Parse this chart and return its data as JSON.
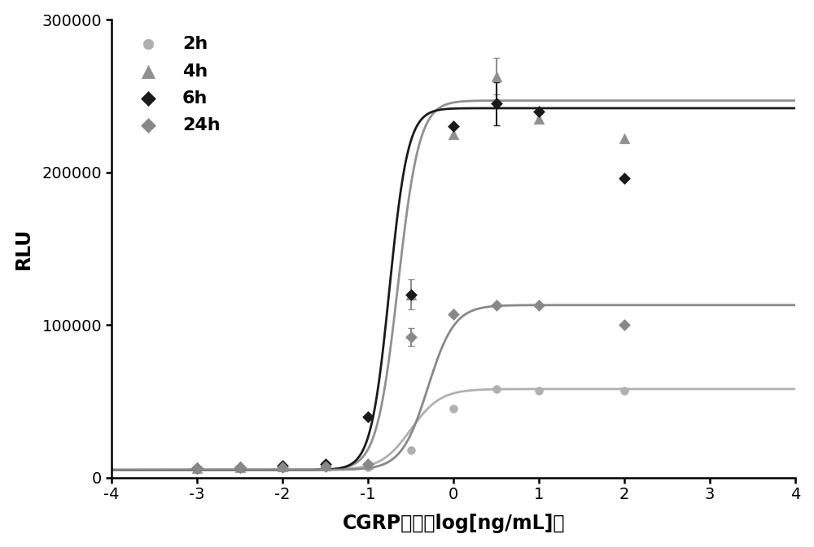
{
  "series": [
    {
      "label": "2h",
      "color": "#b0b0b0",
      "marker": "o",
      "marker_size": 7,
      "line_style": "-",
      "bottom": 5000,
      "top": 58000,
      "ec50_log": -0.5,
      "hill": 2.5,
      "data_x": [
        -3,
        -2.5,
        -2,
        -1.5,
        -1,
        -0.5,
        0,
        0.5,
        1,
        2
      ],
      "data_y": [
        5000,
        6000,
        6000,
        6500,
        7000,
        18000,
        45000,
        58000,
        57000,
        57000
      ],
      "yerr": [
        0,
        0,
        0,
        0,
        0,
        0,
        0,
        0,
        0,
        0
      ]
    },
    {
      "label": "4h",
      "color": "#909090",
      "marker": "^",
      "marker_size": 9,
      "line_style": "-",
      "bottom": 5000,
      "top": 247000,
      "ec50_log": -0.65,
      "hill": 3.5,
      "data_x": [
        -3,
        -2.5,
        -2,
        -1.5,
        -1,
        -0.5,
        0,
        0.5,
        1,
        2
      ],
      "data_y": [
        6000,
        7000,
        7500,
        8000,
        9000,
        120000,
        225000,
        263000,
        235000,
        222000
      ],
      "yerr": [
        0,
        0,
        0,
        0,
        0,
        10000,
        0,
        12000,
        0,
        0
      ]
    },
    {
      "label": "6h",
      "color": "#1a1a1a",
      "marker": "D",
      "marker_size": 7,
      "line_style": "-",
      "bottom": 5000,
      "top": 242000,
      "ec50_log": -0.75,
      "hill": 4.0,
      "data_x": [
        -3,
        -2.5,
        -2,
        -1.5,
        -1,
        -0.5,
        0,
        0.5,
        1,
        2
      ],
      "data_y": [
        6000,
        7000,
        8000,
        9000,
        40000,
        120000,
        230000,
        245000,
        240000,
        196000
      ],
      "yerr": [
        0,
        0,
        0,
        0,
        0,
        0,
        0,
        14000,
        0,
        0
      ]
    },
    {
      "label": "24h",
      "color": "#888888",
      "marker": "D",
      "marker_size": 7,
      "line_style": "-",
      "bottom": 5000,
      "top": 113000,
      "ec50_log": -0.3,
      "hill": 2.8,
      "data_x": [
        -3,
        -2.5,
        -2,
        -1.5,
        -1,
        -0.5,
        0,
        0.5,
        1,
        2
      ],
      "data_y": [
        6000,
        7000,
        7000,
        7500,
        9000,
        92000,
        107000,
        113000,
        113000,
        100000
      ],
      "yerr": [
        0,
        0,
        0,
        0,
        0,
        6000,
        0,
        0,
        0,
        0
      ]
    }
  ],
  "xlabel": "CGRP浓度（log[ng/mL]）",
  "ylabel": "RLU",
  "xlim": [
    -4,
    4
  ],
  "ylim": [
    0,
    300000
  ],
  "xticks": [
    -4,
    -3,
    -2,
    -1,
    0,
    1,
    2,
    3,
    4
  ],
  "yticks": [
    0,
    100000,
    200000,
    300000
  ],
  "ytick_labels": [
    "0",
    "100000",
    "200000",
    "300000"
  ],
  "background_color": "#ffffff",
  "legend_loc": "upper left",
  "label_fontsize": 17,
  "tick_fontsize": 14,
  "legend_fontsize": 16
}
